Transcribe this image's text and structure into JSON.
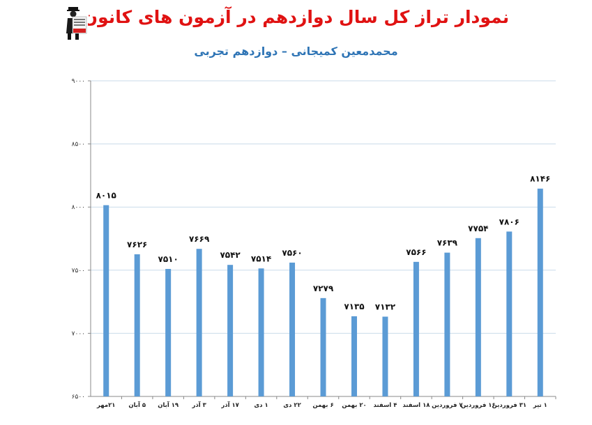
{
  "header": {
    "title": "نمودار تراز کل سال دوازدهم در آزمون های کانون",
    "subtitle": "محمدمعین کمیجانی – دوازدهم تجربی"
  },
  "logo": {
    "icon": "person-with-sign-logo"
  },
  "chart_data": {
    "type": "bar",
    "title": "نمودار تراز کل سال دوازدهم در آزمون های کانون",
    "subtitle": "محمدمعین کمیجانی – دوازدهم تجربی",
    "xlabel": "",
    "ylabel": "",
    "ylim": [
      6500,
      9000
    ],
    "yticks": [
      6500,
      7000,
      7500,
      8000,
      8500,
      9000
    ],
    "ytick_labels": [
      "۶۵۰۰",
      "۷۰۰۰",
      "۷۵۰۰",
      "۸۰۰۰",
      "۸۵۰۰",
      "۹۰۰۰"
    ],
    "grid": true,
    "legend": "none",
    "bar_color": "#5b9bd5",
    "categories": [
      "۲۱مهر",
      "۵ آبان",
      "۱۹ آبان",
      "۳ آذر",
      "۱۷ آذر",
      "۱ دی",
      "۲۲ دی",
      "۶ بهمن",
      "۲۰ بهمن",
      "۴ اسفند",
      "۱۸ اسفند",
      "۷ فروردین",
      "۱۶ فروردین",
      "۳۱ فروردین",
      "۱ تیر"
    ],
    "values": [
      8015,
      7626,
      7510,
      7669,
      7542,
      7514,
      7560,
      7279,
      7135,
      7132,
      7566,
      7639,
      7754,
      7806,
      8146
    ],
    "value_labels": [
      "۸۰۱۵",
      "۷۶۲۶",
      "۷۵۱۰",
      "۷۶۶۹",
      "۷۵۴۲",
      "۷۵۱۴",
      "۷۵۶۰",
      "۷۲۷۹",
      "۷۱۳۵",
      "۷۱۳۲",
      "۷۵۶۶",
      "۷۶۳۹",
      "۷۷۵۴",
      "۷۸۰۶",
      "۸۱۴۶"
    ]
  }
}
